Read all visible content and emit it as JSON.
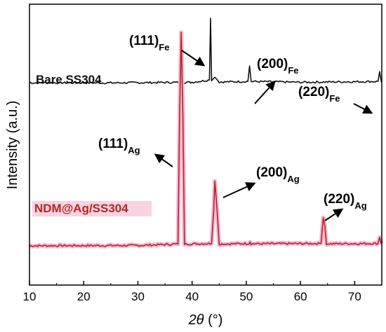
{
  "chart_data": {
    "type": "line",
    "title": "",
    "xlabel": {
      "symbol": "2θ",
      "unit": " (°)"
    },
    "ylabel": "Intensity (a.u.)",
    "xlim": [
      10,
      75
    ],
    "ylim": [
      0,
      100
    ],
    "xticks": [
      "10",
      "20",
      "30",
      "40",
      "50",
      "60",
      "70"
    ],
    "grid": false,
    "colors": {
      "bare": "#111111",
      "ndm": "#b5261e",
      "ndm_glow": "#f3b8d6",
      "ndm_label_bg": "#f7d3e3"
    },
    "series": [
      {
        "name": "Bare SS304",
        "baseline": 72,
        "points": [
          [
            10,
            72
          ],
          [
            25,
            72
          ],
          [
            40,
            72.2
          ],
          [
            43.2,
            73
          ],
          [
            43.4,
            95
          ],
          [
            43.6,
            73
          ],
          [
            44.2,
            74
          ],
          [
            45,
            72.3
          ],
          [
            50.3,
            72.5
          ],
          [
            50.6,
            78
          ],
          [
            50.9,
            72.5
          ],
          [
            60,
            72.2
          ],
          [
            74.3,
            72.5
          ],
          [
            74.6,
            76
          ],
          [
            74.9,
            72.4
          ],
          [
            75,
            72.4
          ]
        ],
        "peaks": [
          {
            "hkl": "111",
            "phase": "Fe",
            "two_theta": 43.4
          },
          {
            "hkl": "200",
            "phase": "Fe",
            "two_theta": 50.6
          },
          {
            "hkl": "220",
            "phase": "Fe",
            "two_theta": 74.6
          }
        ]
      },
      {
        "name": "NDM@Ag/SS304",
        "baseline": 14,
        "points": [
          [
            10,
            14
          ],
          [
            30,
            14.1
          ],
          [
            37.4,
            14.6
          ],
          [
            37.7,
            60
          ],
          [
            38.0,
            90
          ],
          [
            38.3,
            60
          ],
          [
            38.6,
            14.6
          ],
          [
            43.6,
            14.8
          ],
          [
            44.0,
            27
          ],
          [
            44.2,
            37
          ],
          [
            44.6,
            27
          ],
          [
            45,
            14.6
          ],
          [
            50.5,
            14.8
          ],
          [
            50.7,
            15.5
          ],
          [
            50.9,
            14.7
          ],
          [
            63.8,
            14.8
          ],
          [
            64.2,
            24
          ],
          [
            64.5,
            21
          ],
          [
            64.8,
            14.7
          ],
          [
            74.3,
            14.8
          ],
          [
            74.6,
            17
          ],
          [
            74.9,
            14.8
          ],
          [
            75,
            14.6
          ]
        ],
        "peaks": [
          {
            "hkl": "111",
            "phase": "Ag",
            "two_theta": 38.0
          },
          {
            "hkl": "200",
            "phase": "Ag",
            "two_theta": 44.1
          },
          {
            "hkl": "220",
            "phase": "Ag",
            "two_theta": 64.3
          }
        ]
      }
    ]
  }
}
